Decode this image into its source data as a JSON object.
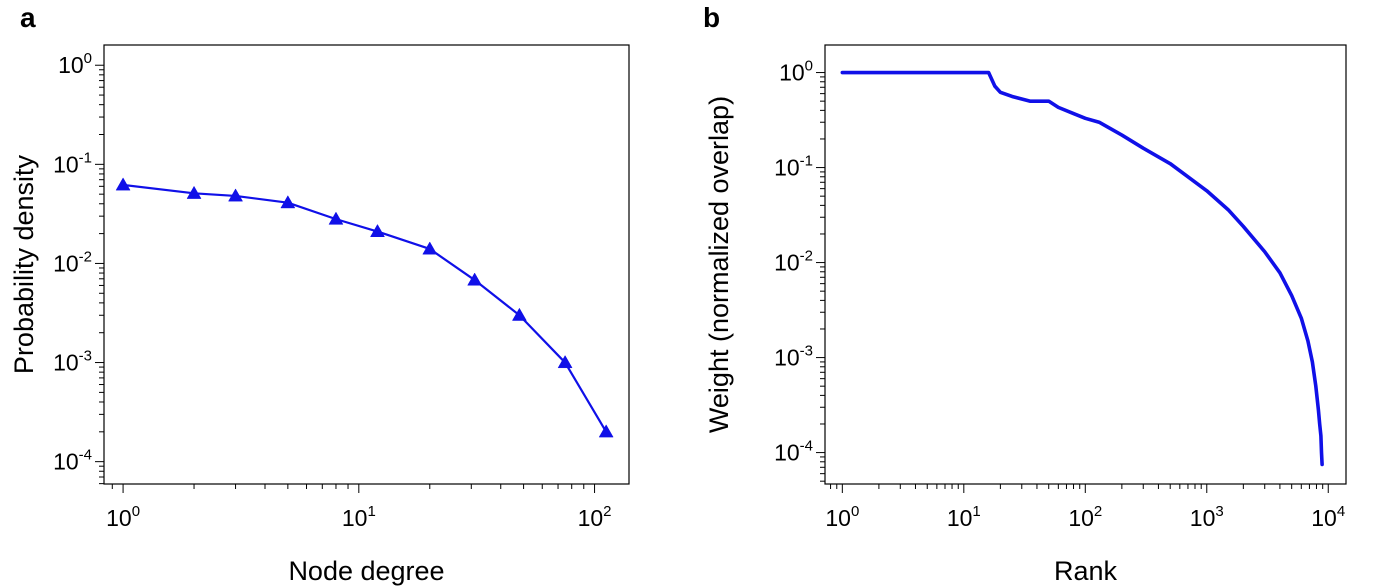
{
  "panels": [
    {
      "letter": "a"
    },
    {
      "letter": "b"
    }
  ],
  "chart_data": [
    {
      "type": "line",
      "marker": "triangle",
      "color": "#1010e8",
      "xlabel": "Node degree",
      "ylabel": "Probability density",
      "xscale": "log",
      "yscale": "log",
      "xlim": [
        0.83,
        140
      ],
      "ylim": [
        5.95e-05,
        1.6
      ],
      "xticks": [
        {
          "base": "10",
          "exp": "0",
          "value": 1
        },
        {
          "base": "10",
          "exp": "1",
          "value": 10
        },
        {
          "base": "10",
          "exp": "2",
          "value": 100
        }
      ],
      "yticks": [
        {
          "base": "10",
          "exp": "-4",
          "value": 0.0001
        },
        {
          "base": "10",
          "exp": "-3",
          "value": 0.001
        },
        {
          "base": "10",
          "exp": "-2",
          "value": 0.01
        },
        {
          "base": "10",
          "exp": "-1",
          "value": 0.1
        },
        {
          "base": "10",
          "exp": "0",
          "value": 1
        }
      ],
      "grid": false,
      "series": [
        {
          "x": [
            1,
            2,
            3,
            5,
            8,
            12,
            20,
            31,
            48,
            75,
            112
          ],
          "y": [
            0.062,
            0.051,
            0.048,
            0.041,
            0.028,
            0.021,
            0.014,
            0.0068,
            0.003,
            0.001,
            0.0002
          ]
        }
      ]
    },
    {
      "type": "line",
      "color": "#1010e8",
      "xlabel": "Rank",
      "ylabel": "Weight (normalized overlap)",
      "xscale": "log",
      "yscale": "log",
      "xlim": [
        0.72,
        14000
      ],
      "ylim": [
        4.67e-05,
        1.95
      ],
      "xticks": [
        {
          "base": "10",
          "exp": "0",
          "value": 1
        },
        {
          "base": "10",
          "exp": "1",
          "value": 10
        },
        {
          "base": "10",
          "exp": "2",
          "value": 100
        },
        {
          "base": "10",
          "exp": "3",
          "value": 1000
        },
        {
          "base": "10",
          "exp": "4",
          "value": 10000
        }
      ],
      "yticks": [
        {
          "base": "10",
          "exp": "-4",
          "value": 0.0001
        },
        {
          "base": "10",
          "exp": "-3",
          "value": 0.001
        },
        {
          "base": "10",
          "exp": "-2",
          "value": 0.01
        },
        {
          "base": "10",
          "exp": "-1",
          "value": 0.1
        },
        {
          "base": "10",
          "exp": "0",
          "value": 1
        }
      ],
      "grid": false,
      "series": [
        {
          "x": [
            1,
            16,
            18,
            20,
            25,
            35,
            50,
            60,
            80,
            100,
            130,
            200,
            300,
            500,
            700,
            1000,
            1500,
            2000,
            3000,
            4000,
            5000,
            6000,
            6800,
            7400,
            7900,
            8300,
            8500,
            8700,
            8800,
            8900
          ],
          "y": [
            1,
            1,
            0.72,
            0.62,
            0.56,
            0.5,
            0.5,
            0.43,
            0.37,
            0.33,
            0.3,
            0.22,
            0.16,
            0.11,
            0.08,
            0.057,
            0.036,
            0.024,
            0.013,
            0.0078,
            0.0045,
            0.0026,
            0.0015,
            0.0009,
            0.0005,
            0.00028,
            0.0002,
            0.00015,
            0.0001,
            7.5e-05
          ]
        }
      ]
    }
  ]
}
